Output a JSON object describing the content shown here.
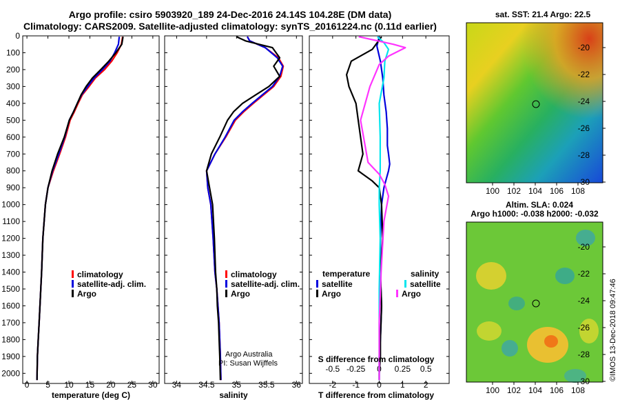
{
  "header": {
    "line1": "Argo profile: csiro 5903920_189 24-Dec-2016 24.14S 104.28E (DM data)",
    "line2": "Climatology: CARS2009. Satellite-adjusted climatology: synTS_20161224.nc (0.11d earlier)"
  },
  "colors": {
    "climatology": "#ff0000",
    "satellite": "#0000dd",
    "argo": "#000000",
    "s_satellite": "#00e5ee",
    "s_argo": "#ff33ff"
  },
  "depth_axis": {
    "ticks": [
      0,
      100,
      200,
      300,
      400,
      500,
      600,
      700,
      800,
      900,
      1000,
      1100,
      1200,
      1300,
      1400,
      1500,
      1600,
      1700,
      1800,
      1900,
      2000
    ],
    "ylim": [
      0,
      2060
    ]
  },
  "chart_data": [
    {
      "type": "line",
      "id": "temperature",
      "xlabel": "temperature (deg C)",
      "xlim": [
        -1,
        31.5
      ],
      "xticks": [
        0,
        5,
        10,
        15,
        20,
        25,
        30
      ],
      "tick_labels": [
        "0",
        "5",
        "10",
        "15",
        "20",
        "25",
        "30"
      ],
      "legend": [
        "climatology",
        "satellite-adj. clim.",
        "Argo"
      ],
      "series": [
        {
          "name": "climatology",
          "color": "#ff0000",
          "x": [
            22.8,
            22.5,
            21.5,
            20.2,
            18.5,
            16.3,
            14.8,
            13.2,
            12.2,
            11.3,
            10.3,
            9.2,
            7.8,
            6.3,
            5.0,
            4.4,
            3.8,
            3.5,
            3.3,
            3.1,
            2.9,
            2.7,
            2.5,
            2.4
          ],
          "depth": [
            5,
            50,
            100,
            150,
            200,
            250,
            300,
            350,
            400,
            450,
            500,
            600,
            700,
            800,
            900,
            1000,
            1200,
            1400,
            1500,
            1600,
            1700,
            1800,
            1900,
            2040
          ]
        },
        {
          "name": "satellite-adj. clim.",
          "color": "#0000dd",
          "x": [
            22.0,
            21.8,
            20.9,
            19.8,
            18.0,
            16.0,
            14.5,
            13.0,
            12.0,
            11.1,
            10.1,
            9.0,
            7.6,
            6.1,
            5.0,
            4.4,
            3.8,
            3.5,
            3.3,
            3.1,
            2.9,
            2.7,
            2.5,
            2.4
          ],
          "depth": [
            5,
            50,
            100,
            150,
            200,
            250,
            300,
            350,
            400,
            450,
            500,
            600,
            700,
            800,
            900,
            1000,
            1200,
            1400,
            1500,
            1600,
            1700,
            1800,
            1900,
            2040
          ]
        },
        {
          "name": "Argo",
          "color": "#000000",
          "x": [
            22.9,
            22.6,
            21.2,
            19.5,
            17.6,
            15.6,
            14.1,
            12.9,
            12.0,
            11.1,
            10.1,
            8.9,
            7.3,
            6.0,
            5.0,
            4.4,
            3.8,
            3.5,
            3.3,
            3.1,
            2.9,
            2.7,
            2.5,
            2.4
          ],
          "depth": [
            5,
            50,
            100,
            150,
            200,
            250,
            300,
            350,
            400,
            450,
            500,
            600,
            700,
            800,
            900,
            1000,
            1200,
            1400,
            1500,
            1600,
            1700,
            1800,
            1900,
            2040
          ]
        }
      ]
    },
    {
      "type": "line",
      "id": "salinity",
      "xlabel": "salinity",
      "xlim": [
        33.8,
        36.1
      ],
      "xticks": [
        34,
        34.5,
        35,
        35.5,
        36
      ],
      "tick_labels": [
        "34",
        "34.5",
        "35",
        "35.5",
        "36"
      ],
      "legend": [
        "climatology",
        "satellite-adj. clim.",
        "Argo"
      ],
      "series": [
        {
          "name": "climatology",
          "color": "#ff0000",
          "x": [
            35.18,
            35.22,
            35.48,
            35.7,
            35.78,
            35.74,
            35.62,
            35.45,
            35.28,
            35.12,
            34.98,
            34.82,
            34.64,
            34.5,
            34.52,
            34.57,
            34.61,
            34.64,
            34.67,
            34.69,
            34.71,
            34.72,
            34.73,
            34.74
          ],
          "depth": [
            5,
            30,
            70,
            130,
            180,
            240,
            300,
            350,
            400,
            450,
            500,
            600,
            700,
            800,
            900,
            1000,
            1200,
            1400,
            1500,
            1600,
            1700,
            1800,
            1900,
            2040
          ]
        },
        {
          "name": "satellite-adj. clim.",
          "color": "#0000dd",
          "x": [
            35.18,
            35.22,
            35.48,
            35.68,
            35.77,
            35.72,
            35.6,
            35.43,
            35.26,
            35.1,
            34.96,
            34.81,
            34.64,
            34.5,
            34.52,
            34.57,
            34.61,
            34.64,
            34.67,
            34.69,
            34.71,
            34.72,
            34.73,
            34.74
          ],
          "depth": [
            5,
            30,
            70,
            130,
            180,
            240,
            300,
            350,
            400,
            450,
            500,
            600,
            700,
            800,
            900,
            1000,
            1200,
            1400,
            1500,
            1600,
            1700,
            1800,
            1900,
            2040
          ]
        },
        {
          "name": "Argo",
          "color": "#000000",
          "x": [
            35.0,
            35.15,
            35.6,
            35.72,
            35.62,
            35.72,
            35.54,
            35.32,
            35.1,
            34.95,
            34.85,
            34.72,
            34.58,
            34.5,
            34.55,
            34.6,
            34.63,
            34.65,
            34.67,
            34.68,
            34.7,
            34.71,
            34.72,
            34.73
          ],
          "depth": [
            5,
            30,
            70,
            130,
            180,
            240,
            300,
            350,
            400,
            450,
            500,
            600,
            700,
            800,
            900,
            1000,
            1200,
            1400,
            1500,
            1600,
            1700,
            1800,
            1900,
            2040
          ]
        }
      ],
      "annotations": [
        "Argo Australia",
        "PI: Susan Wijffels"
      ]
    },
    {
      "type": "line",
      "id": "difference",
      "xlabel": "T difference from climatology",
      "xlabel_top": "S difference from climatology",
      "xlim": [
        -3,
        3
      ],
      "xticks": [
        -2,
        -1,
        0,
        1,
        2
      ],
      "tick_labels": [
        "-2",
        "-1",
        "0",
        "1",
        "2"
      ],
      "top_ticks": [
        "-0.5",
        "-0.25",
        "0",
        "0.25",
        "0.5"
      ],
      "legend_left_title": "temperature",
      "legend_right_title": "salinity",
      "legend": [
        "satellite",
        "Argo",
        "satellite",
        "Argo"
      ],
      "series": [
        {
          "name": "T satellite",
          "color": "#0000dd",
          "x": [
            0.0,
            -0.1,
            0.05,
            0.15,
            0.2,
            0.3,
            0.35,
            0.35,
            0.4,
            0.45,
            0.4,
            0.3,
            0.2,
            0.1,
            0.05,
            0.05,
            0.1,
            0.05,
            0.0,
            0.0,
            0.0
          ],
          "depth": [
            5,
            60,
            150,
            250,
            350,
            450,
            550,
            650,
            700,
            760,
            800,
            850,
            900,
            1000,
            1200,
            1400,
            1600,
            1800,
            1900,
            2000,
            2040
          ]
        },
        {
          "name": "T Argo",
          "color": "#000000",
          "x": [
            0.1,
            -0.3,
            -1.2,
            -1.4,
            -1.3,
            -1.0,
            -0.9,
            -0.8,
            -0.7,
            -0.9,
            -0.7,
            -0.3,
            0.0,
            0.1,
            0.15,
            0.05,
            0.1,
            0.05,
            0.05,
            0.0,
            0.0
          ],
          "depth": [
            5,
            80,
            150,
            230,
            300,
            400,
            500,
            600,
            700,
            800,
            820,
            860,
            900,
            1000,
            1200,
            1400,
            1600,
            1800,
            1900,
            2000,
            2040
          ]
        },
        {
          "name": "S satellite",
          "color": "#00e5ee",
          "x": [
            -0.02,
            0.05,
            0.1,
            0.06,
            0.05,
            0.0,
            0.01,
            0.01,
            0.0,
            0.0,
            0.01,
            0.0,
            0.0,
            0.0,
            0.0
          ],
          "depth": [
            5,
            40,
            80,
            150,
            250,
            400,
            600,
            800,
            900,
            1000,
            1200,
            1500,
            1700,
            1900,
            2040
          ]
        },
        {
          "name": "S Argo",
          "color": "#ff33ff",
          "x": [
            -0.22,
            0.15,
            0.28,
            0.1,
            0.0,
            -0.1,
            -0.2,
            -0.12,
            0.0,
            0.06,
            0.1,
            0.05,
            0.02,
            0.0,
            0.0
          ],
          "depth": [
            5,
            50,
            70,
            120,
            170,
            300,
            500,
            750,
            820,
            880,
            950,
            1100,
            1400,
            1700,
            2040
          ]
        }
      ]
    }
  ],
  "maps": {
    "sst": {
      "title": "sat. SST: 21.4 Argo: 22.5",
      "yticks": [
        "-20",
        "-22",
        "-24",
        "-26",
        "-28",
        "-30"
      ],
      "xticks": [
        "100",
        "102",
        "104",
        "106",
        "108"
      ]
    },
    "sla": {
      "title1": "Altim. SLA: 0.024",
      "title2": "Argo h1000: -0.038 h2000: -0.032",
      "yticks": [
        "-20",
        "-22",
        "-24",
        "-26",
        "-28",
        "-30"
      ],
      "xticks": [
        "100",
        "102",
        "104",
        "106",
        "108"
      ]
    }
  },
  "footer": "©IMOS 13-Dec-2018 09:47:46"
}
